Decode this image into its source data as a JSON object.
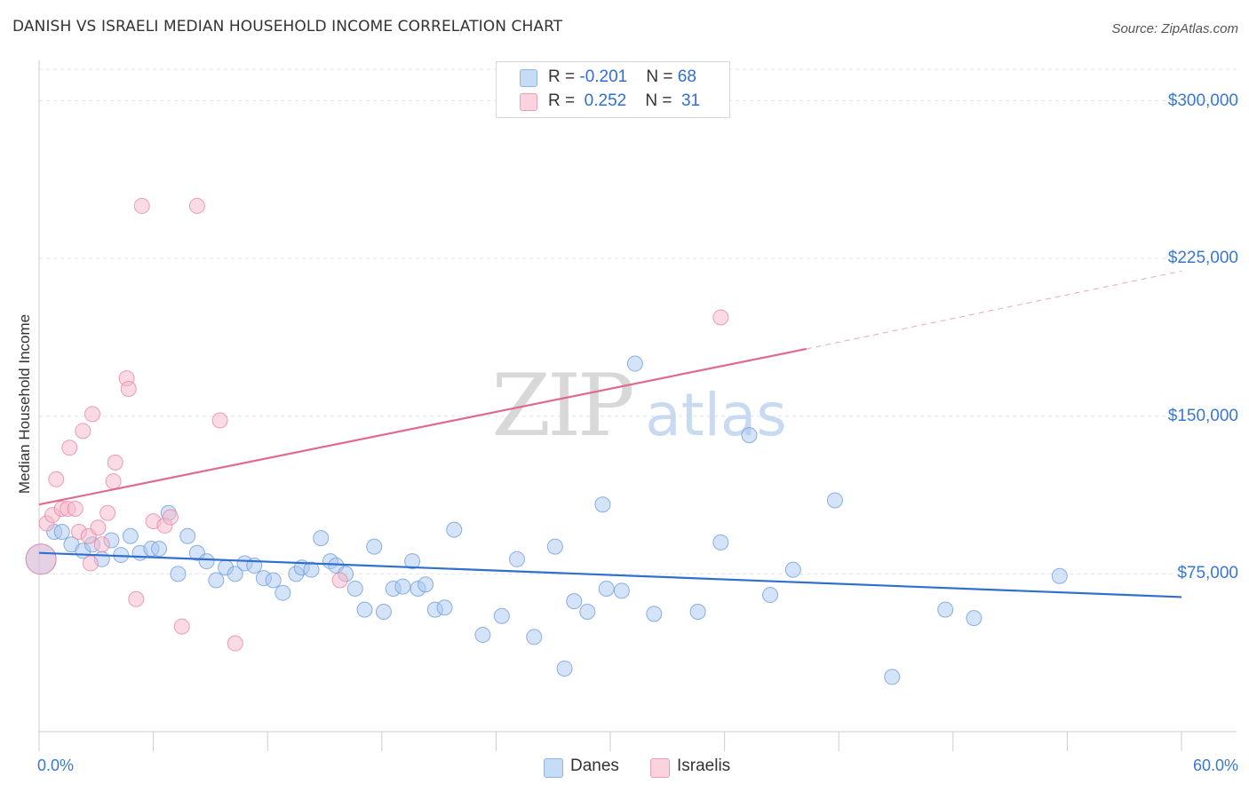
{
  "header": {
    "title": "DANISH VS ISRAELI MEDIAN HOUSEHOLD INCOME CORRELATION CHART",
    "source": "Source: ZipAtlas.com"
  },
  "legend": {
    "rows": [
      {
        "r_label": "R = ",
        "r_value": "-0.201",
        "n_label": "N = ",
        "n_value": "68",
        "color": "#a9c8f0"
      },
      {
        "r_label": "R = ",
        "r_value": " 0.252",
        "n_label": "N = ",
        "n_value": " 31",
        "color": "#f6b8cc"
      }
    ],
    "series": [
      {
        "name": "Danes",
        "color": "#a9c8f0"
      },
      {
        "name": "Israelis",
        "color": "#f6b8cc"
      }
    ]
  },
  "watermark": {
    "zip": "ZIP",
    "atlas": "atlas"
  },
  "chart_data": {
    "type": "scatter",
    "title": "DANISH VS ISRAELI MEDIAN HOUSEHOLD INCOME CORRELATION CHART",
    "ylabel": "Median Household Income",
    "xlabel": "",
    "xlim": [
      0,
      60
    ],
    "ylim": [
      0,
      315000
    ],
    "x_tick_labels": {
      "min": "0.0%",
      "max": "60.0%"
    },
    "y_ticks": [
      {
        "value": 75000,
        "label": "$75,000"
      },
      {
        "value": 150000,
        "label": "$150,000"
      },
      {
        "value": 225000,
        "label": "$225,000"
      },
      {
        "value": 300000,
        "label": "$300,000"
      }
    ],
    "grid": true,
    "legend_placement": "top-center",
    "series": [
      {
        "name": "Danes",
        "color": "#a9c8f0",
        "stroke": "#6f9fdc",
        "trend": {
          "x0": 0,
          "y0": 85000,
          "x1": 60,
          "y1": 64000,
          "color": "#2f6fd0"
        },
        "points": [
          [
            0.1,
            82000
          ],
          [
            0.8,
            95000
          ],
          [
            1.2,
            95000
          ],
          [
            1.7,
            89000
          ],
          [
            2.3,
            86000
          ],
          [
            2.8,
            89000
          ],
          [
            3.3,
            82000
          ],
          [
            3.8,
            91000
          ],
          [
            4.3,
            84000
          ],
          [
            4.8,
            93000
          ],
          [
            5.3,
            85000
          ],
          [
            5.9,
            87000
          ],
          [
            6.3,
            87000
          ],
          [
            6.8,
            104000
          ],
          [
            7.3,
            75000
          ],
          [
            7.8,
            93000
          ],
          [
            8.3,
            85000
          ],
          [
            8.8,
            81000
          ],
          [
            9.3,
            72000
          ],
          [
            9.8,
            78000
          ],
          [
            10.3,
            75000
          ],
          [
            10.8,
            80000
          ],
          [
            11.3,
            79000
          ],
          [
            11.8,
            73000
          ],
          [
            12.3,
            72000
          ],
          [
            12.8,
            66000
          ],
          [
            13.5,
            75000
          ],
          [
            13.8,
            78000
          ],
          [
            14.3,
            77000
          ],
          [
            14.8,
            92000
          ],
          [
            15.3,
            81000
          ],
          [
            15.6,
            79000
          ],
          [
            16.1,
            75000
          ],
          [
            16.6,
            68000
          ],
          [
            17.1,
            58000
          ],
          [
            17.6,
            88000
          ],
          [
            18.1,
            57000
          ],
          [
            18.6,
            68000
          ],
          [
            19.1,
            69000
          ],
          [
            19.6,
            81000
          ],
          [
            19.9,
            68000
          ],
          [
            20.3,
            70000
          ],
          [
            20.8,
            58000
          ],
          [
            21.3,
            59000
          ],
          [
            21.8,
            96000
          ],
          [
            23.3,
            46000
          ],
          [
            24.3,
            55000
          ],
          [
            25.1,
            82000
          ],
          [
            26.0,
            45000
          ],
          [
            27.1,
            88000
          ],
          [
            27.6,
            30000
          ],
          [
            28.1,
            62000
          ],
          [
            28.8,
            57000
          ],
          [
            29.6,
            108000
          ],
          [
            29.8,
            68000
          ],
          [
            30.6,
            67000
          ],
          [
            31.3,
            175000
          ],
          [
            32.3,
            56000
          ],
          [
            34.6,
            57000
          ],
          [
            35.8,
            90000
          ],
          [
            37.3,
            141000
          ],
          [
            38.4,
            65000
          ],
          [
            39.6,
            77000
          ],
          [
            41.8,
            110000
          ],
          [
            44.8,
            26000
          ],
          [
            47.6,
            58000
          ],
          [
            49.1,
            54000
          ],
          [
            53.6,
            74000
          ]
        ]
      },
      {
        "name": "Israelis",
        "color": "#f6b8cc",
        "stroke": "#e8879f",
        "trend": {
          "x0": 0,
          "y0": 108000,
          "x1": 40.3,
          "y1": 182000,
          "dash_to_x": 60,
          "dash_to_y": 219000,
          "color": "#e06a8e"
        },
        "points": [
          [
            0.1,
            82000
          ],
          [
            0.4,
            99000
          ],
          [
            0.7,
            103000
          ],
          [
            0.9,
            120000
          ],
          [
            1.2,
            106000
          ],
          [
            1.5,
            106000
          ],
          [
            1.6,
            135000
          ],
          [
            1.9,
            106000
          ],
          [
            2.1,
            95000
          ],
          [
            2.3,
            143000
          ],
          [
            2.6,
            93000
          ],
          [
            2.7,
            80000
          ],
          [
            2.8,
            151000
          ],
          [
            3.1,
            97000
          ],
          [
            3.3,
            89000
          ],
          [
            3.6,
            104000
          ],
          [
            3.9,
            119000
          ],
          [
            4.0,
            128000
          ],
          [
            4.6,
            168000
          ],
          [
            4.7,
            163000
          ],
          [
            5.1,
            63000
          ],
          [
            5.4,
            250000
          ],
          [
            6.0,
            100000
          ],
          [
            6.6,
            98000
          ],
          [
            6.9,
            102000
          ],
          [
            7.5,
            50000
          ],
          [
            8.3,
            250000
          ],
          [
            9.5,
            148000
          ],
          [
            10.3,
            42000
          ],
          [
            15.8,
            72000
          ],
          [
            35.8,
            197000
          ]
        ]
      }
    ]
  }
}
